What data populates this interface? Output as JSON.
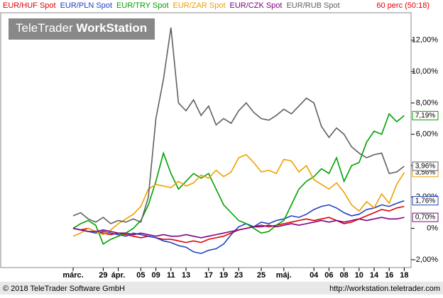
{
  "chart_data": {
    "type": "line",
    "legend_texts": [
      "EUR/HUF Spot",
      "EUR/PLN Spot",
      "EUR/TRY Spot",
      "EUR/ZAR Spot",
      "EUR/CZK Spot",
      "EUR/RUB Spot"
    ],
    "interval": "60 perc (50:18)",
    "watermark": {
      "plain": "TeleTrader ",
      "bold": "WorkStation"
    },
    "footer_left": "© 2018 TeleTrader Software GmbH",
    "footer_right": "http://workstation.teletrader.com",
    "categories": [
      "márc.",
      null,
      null,
      null,
      "29",
      null,
      "ápr.",
      null,
      null,
      "05",
      null,
      "09",
      null,
      "11",
      null,
      "13",
      null,
      null,
      "17",
      null,
      "19",
      null,
      "23",
      null,
      null,
      "25",
      null,
      null,
      "máj.",
      null,
      null,
      null,
      "04",
      null,
      "06",
      null,
      "08",
      null,
      "10",
      null,
      "14",
      null,
      "16",
      null,
      "18"
    ],
    "ylim": [
      -2.5,
      13.75
    ],
    "yticks": [
      {
        "value": -2,
        "label": "-2,00%"
      },
      {
        "value": 0,
        "label": "0%"
      },
      {
        "value": 2,
        "label": "2,00%"
      },
      {
        "value": 4,
        "label": "4,00%"
      },
      {
        "value": 6,
        "label": "6,00%"
      },
      {
        "value": 8,
        "label": "8,00%"
      },
      {
        "value": 10,
        "label": "10,00%"
      },
      {
        "value": 12,
        "label": "12,00%"
      }
    ],
    "grid": false,
    "series": [
      {
        "name": "EUR/HUF Spot",
        "color": "#e00000",
        "values": [
          0,
          -0.1,
          0,
          -0.2,
          -0.3,
          -0.4,
          -0.3,
          -0.4,
          -0.5,
          -0.6,
          -0.5,
          -0.6,
          -0.7,
          -0.7,
          -0.8,
          -0.9,
          -0.8,
          -0.9,
          -0.7,
          -0.6,
          -0.5,
          -0.3,
          -0.1,
          0,
          0.1,
          0.2,
          0.1,
          0.2,
          0.3,
          0.4,
          0.5,
          0.6,
          0.5,
          0.6,
          0.7,
          0.5,
          0.3,
          0.4,
          0.6,
          0.8,
          1.0,
          1.2,
          1.1,
          1.3,
          1.4
        ]
      },
      {
        "name": "EUR/PLN Spot",
        "color": "#2040c0",
        "values": [
          0,
          -0.1,
          -0.2,
          -0.3,
          -0.2,
          -0.3,
          -0.4,
          -0.5,
          -0.3,
          -0.4,
          -0.5,
          -0.6,
          -0.8,
          -0.9,
          -1.1,
          -1.2,
          -1.5,
          -1.6,
          -1.4,
          -1.3,
          -1.0,
          -0.4,
          0.1,
          0.3,
          0.1,
          0.4,
          0.3,
          0.5,
          0.6,
          0.8,
          0.7,
          0.9,
          1.2,
          1.4,
          1.5,
          1.3,
          1.0,
          0.8,
          0.9,
          1.2,
          1.3,
          1.5,
          1.4,
          1.6,
          1.76
        ],
        "end_label": "1,76%"
      },
      {
        "name": "EUR/TRY Spot",
        "color": "#00a000",
        "values": [
          0,
          0.3,
          0.5,
          0.2,
          -1,
          -0.7,
          -0.5,
          -0.3,
          0,
          0.5,
          1.5,
          3,
          4.8,
          3.5,
          2.5,
          3,
          3.5,
          3.2,
          3.5,
          2.5,
          1.5,
          1,
          0.5,
          0.3,
          0,
          -0.3,
          -0.2,
          0.2,
          0.5,
          1.5,
          2.5,
          3,
          3.3,
          3.8,
          3.5,
          4.5,
          3,
          4,
          4.2,
          5.5,
          6.2,
          6,
          7.3,
          6.8,
          7.19
        ],
        "end_label": "7,19%"
      },
      {
        "name": "EUR/ZAR Spot",
        "color": "#f0a000",
        "values": [
          -0.5,
          -0.3,
          0,
          -0.2,
          -0.4,
          -0.1,
          0.3,
          0.6,
          0.9,
          1.4,
          2.5,
          2.8,
          2.7,
          2.6,
          3,
          2.7,
          2.9,
          3.4,
          3.2,
          3.7,
          3.3,
          3.6,
          4.5,
          4.7,
          4.2,
          3.6,
          3.7,
          3.5,
          4.4,
          4.3,
          3.6,
          4,
          3.1,
          2.8,
          2.5,
          2.9,
          2.3,
          1.5,
          1.1,
          1.7,
          1.3,
          2.2,
          1.6,
          2.8,
          3.56
        ],
        "end_label": "3,56%"
      },
      {
        "name": "EUR/CZK Spot",
        "color": "#800080",
        "values": [
          0,
          -0.1,
          -0.2,
          -0.2,
          -0.1,
          -0.2,
          -0.3,
          -0.3,
          -0.4,
          -0.3,
          -0.4,
          -0.5,
          -0.4,
          -0.5,
          -0.5,
          -0.4,
          -0.5,
          -0.6,
          -0.5,
          -0.4,
          -0.3,
          -0.2,
          -0.1,
          0,
          0.1,
          0.1,
          0.2,
          0.1,
          0.2,
          0.3,
          0.2,
          0.3,
          0.4,
          0.5,
          0.4,
          0.5,
          0.4,
          0.5,
          0.6,
          0.5,
          0.6,
          0.7,
          0.6,
          0.6,
          0.7
        ],
        "end_label": "0,70%"
      },
      {
        "name": "EUR/RUB Spot",
        "color": "#606060",
        "values": [
          0.8,
          1,
          0.6,
          0.4,
          0.7,
          0.3,
          0.5,
          0.4,
          0.6,
          0.4,
          2,
          7,
          9.5,
          12.8,
          8,
          7.5,
          8.2,
          7.2,
          7.8,
          6.6,
          7,
          6.7,
          7.5,
          8,
          7.4,
          7,
          6.9,
          7.2,
          7.6,
          7.3,
          7.8,
          8.3,
          8,
          6.5,
          5.8,
          6.4,
          6,
          5.2,
          4.8,
          4.5,
          4.7,
          4.8,
          3.5,
          3.6,
          3.96
        ],
        "end_label": "3,96%"
      }
    ]
  }
}
